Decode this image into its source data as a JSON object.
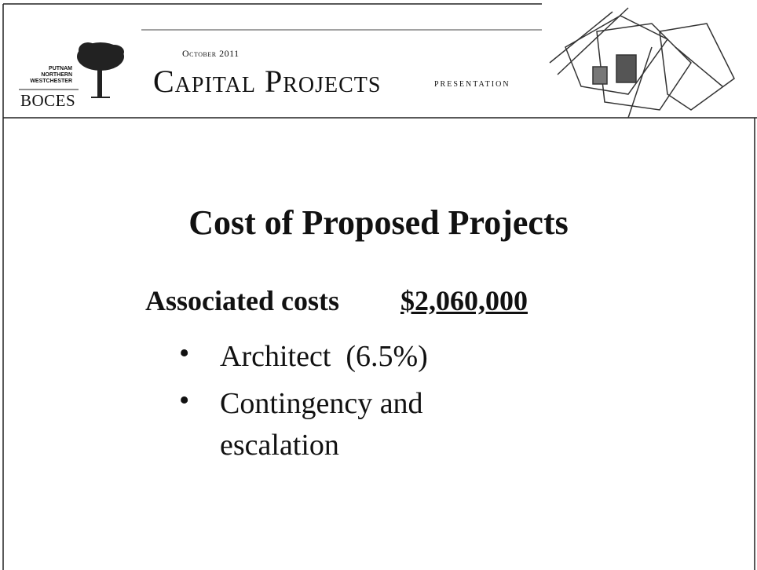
{
  "header": {
    "logo": {
      "lines": [
        "Putnam",
        "Northern",
        "Westchester"
      ],
      "name": "BOCES"
    },
    "date": "October 2011",
    "title": "Capital Projects",
    "subtitle": "Presentation"
  },
  "slide": {
    "title": "Cost of Proposed Projects",
    "label": "Associated costs",
    "amount": "$2,060,000",
    "bullets": [
      "Architect  (6.5%)",
      "Contingency and escalation"
    ]
  }
}
